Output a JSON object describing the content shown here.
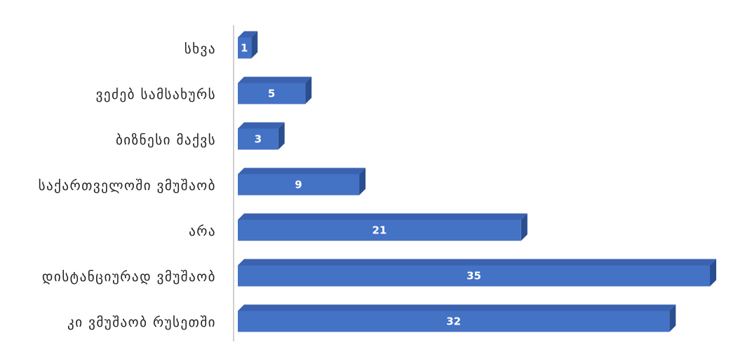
{
  "colors": {
    "bar_front": "#4472c4",
    "bar_top": "#3a62b0",
    "bar_side": "#2a4e8f",
    "axis": "#bfbfbf",
    "label_text": "#222222",
    "value_text": "#ffffff"
  },
  "chart_data": {
    "type": "bar",
    "orientation": "horizontal",
    "style": "3d",
    "title": "",
    "xlabel": "",
    "ylabel": "",
    "grid": false,
    "legend": "none",
    "categories": [
      "სხვა",
      "ვეძებ სამსახურს",
      "ბიზნესი მაქვს",
      "საქართველოში ვმუშაობ",
      "არა",
      "დისტანციურად ვმუშაობ",
      "კი ვმუშაობ რუსეთში"
    ],
    "values": [
      1,
      5,
      3,
      9,
      21,
      35,
      32
    ],
    "xlim": [
      0,
      35
    ]
  }
}
